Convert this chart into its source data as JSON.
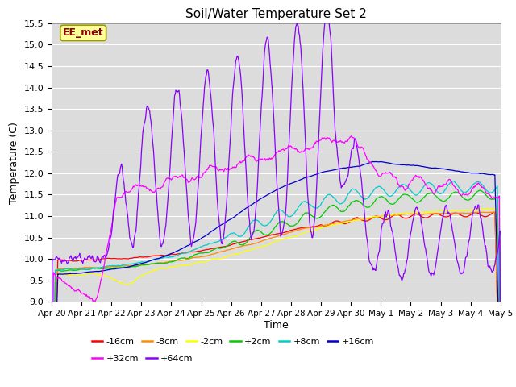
{
  "title": "Soil/Water Temperature Set 2",
  "xlabel": "Time",
  "ylabel": "Temperature (C)",
  "ylim": [
    9.0,
    15.5
  ],
  "yticks": [
    9.0,
    9.5,
    10.0,
    10.5,
    11.0,
    11.5,
    12.0,
    12.5,
    13.0,
    13.5,
    14.0,
    14.5,
    15.0,
    15.5
  ],
  "xtick_labels": [
    "Apr 20",
    "Apr 21",
    "Apr 22",
    "Apr 23",
    "Apr 24",
    "Apr 25",
    "Apr 26",
    "Apr 27",
    "Apr 28",
    "Apr 29",
    "Apr 30",
    "May 1",
    "May 2",
    "May 3",
    "May 4",
    "May 5"
  ],
  "annotation": "EE_met",
  "annotation_color": "#8B0000",
  "annotation_bg": "#FFFF99",
  "annotation_edge": "#999900",
  "plot_bg": "#DCDCDC",
  "fig_bg": "#FFFFFF",
  "grid_color": "#FFFFFF",
  "series": [
    {
      "label": "-16cm",
      "color": "#FF0000"
    },
    {
      "label": "-8cm",
      "color": "#FF8C00"
    },
    {
      "label": "-2cm",
      "color": "#FFFF00"
    },
    {
      "label": "+2cm",
      "color": "#00CC00"
    },
    {
      "label": "+8cm",
      "color": "#00CCCC"
    },
    {
      "label": "+16cm",
      "color": "#0000CC"
    },
    {
      "label": "+32cm",
      "color": "#FF00FF"
    },
    {
      "label": "+64cm",
      "color": "#8B00FF"
    }
  ],
  "legend_ncol_row1": 6,
  "legend_ncol_row2": 2
}
